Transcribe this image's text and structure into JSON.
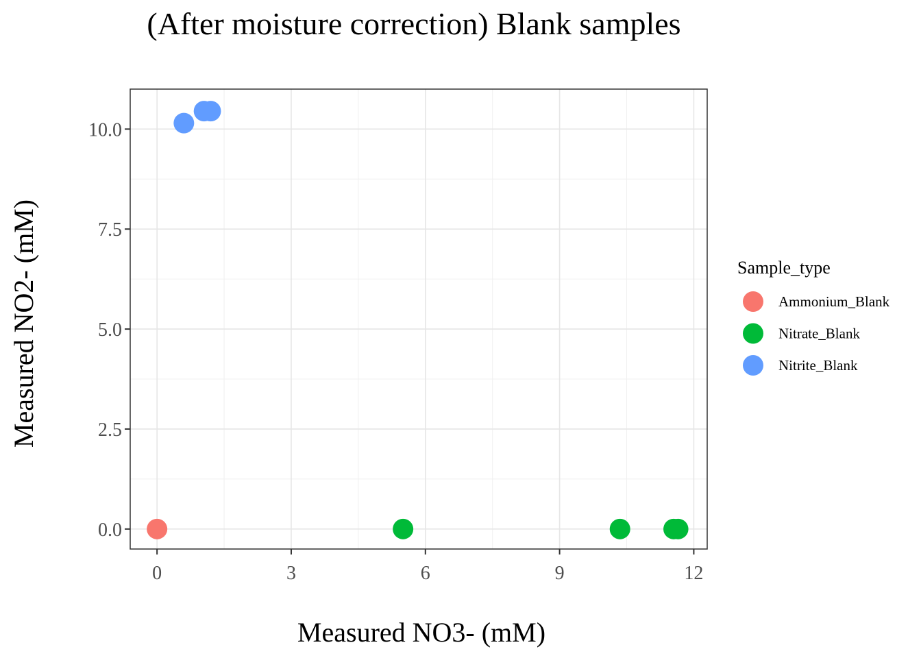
{
  "chart_data": {
    "type": "scatter",
    "title": "(After moisture correction) Blank samples",
    "xlabel": "Measured NO3- (mM)",
    "ylabel": "Measured NO2- (mM)",
    "xlim": [
      -0.6,
      12.3
    ],
    "ylim": [
      -0.5,
      11.0
    ],
    "x_ticks": [
      "0",
      "3",
      "6",
      "9",
      "12"
    ],
    "y_ticks": [
      "0.0",
      "2.5",
      "5.0",
      "7.5",
      "10.0"
    ],
    "grid": true,
    "legend": {
      "title": "Sample_type",
      "placement": "right"
    },
    "series": [
      {
        "name": "Ammonium_Blank",
        "color": "#F8766D",
        "points": [
          [
            0.0,
            0.0
          ]
        ]
      },
      {
        "name": "Nitrate_Blank",
        "color": "#00BA38",
        "points": [
          [
            5.5,
            0.0
          ],
          [
            10.35,
            0.0
          ],
          [
            11.55,
            0.0
          ],
          [
            11.65,
            0.0
          ]
        ]
      },
      {
        "name": "Nitrite_Blank",
        "color": "#619CFF",
        "points": [
          [
            0.6,
            10.15
          ],
          [
            1.05,
            10.45
          ],
          [
            1.2,
            10.45
          ]
        ]
      }
    ]
  }
}
